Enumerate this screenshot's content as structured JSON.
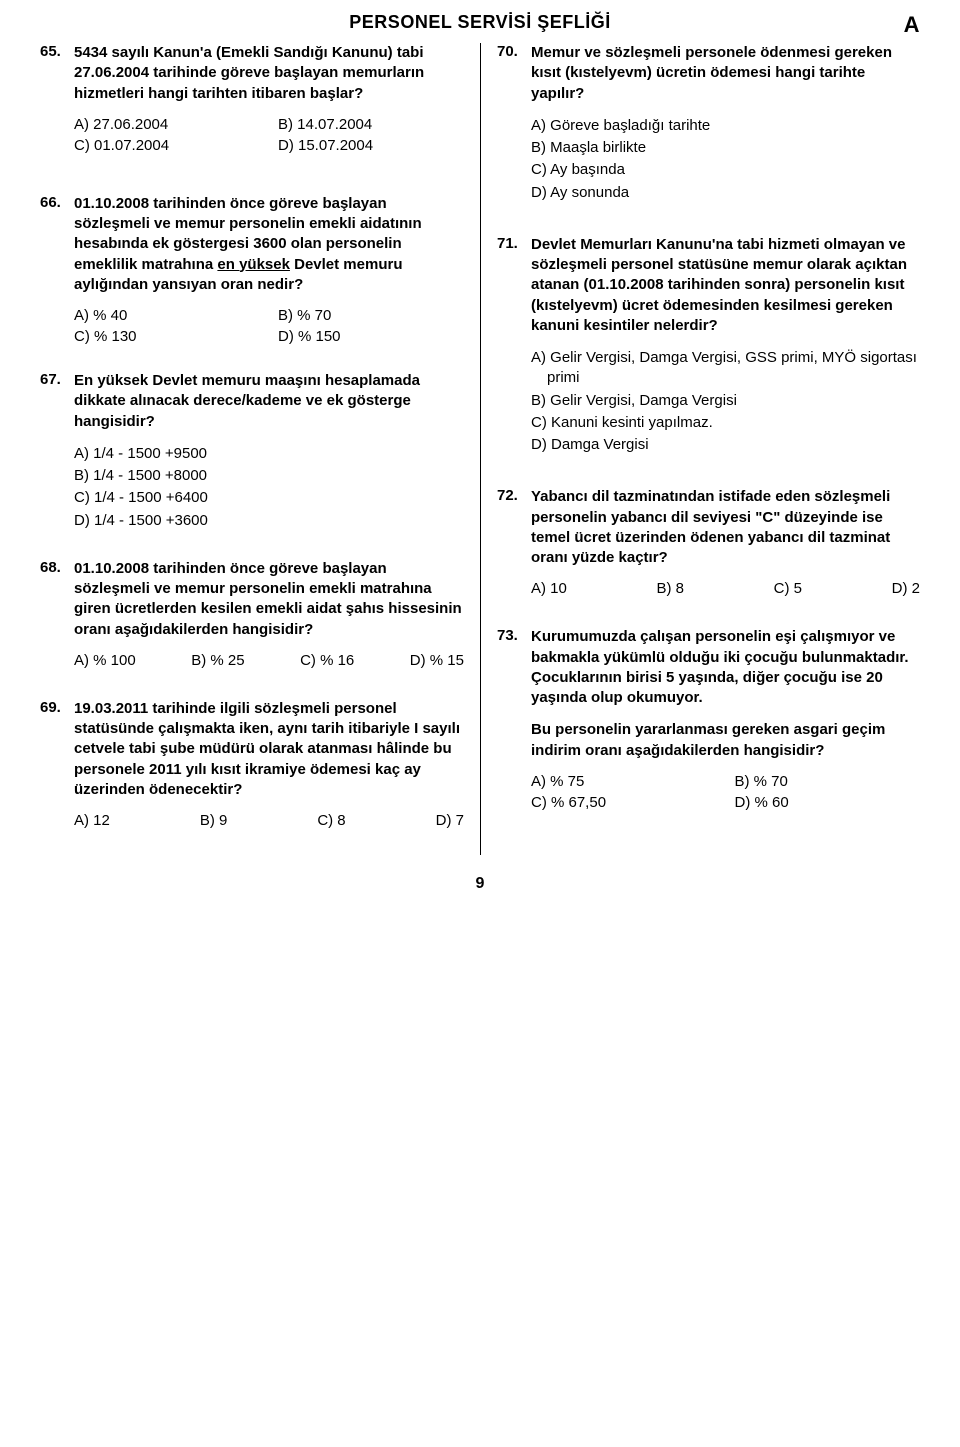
{
  "header": {
    "title": "PERSONEL SERVİSİ ŞEFLİĞİ",
    "letter": "A"
  },
  "page_number": "9",
  "left": [
    {
      "num": "65.",
      "stem": "5434 sayılı Kanun'a (Emekli Sandığı Kanunu) tabi 27.06.2004 tarihinde göreve başlayan memurların hizmetleri hangi tarihten itibaren başlar?",
      "opts_layout": "2col",
      "opts": [
        "A) 27.06.2004",
        "B) 14.07.2004",
        "C) 01.07.2004",
        "D) 15.07.2004"
      ]
    },
    {
      "num": "66.",
      "stem_html": "01.10.2008 tarihinden önce göreve başlayan sözleşmeli ve memur personelin emekli aidatının hesabında ek göstergesi 3600 olan personelin emeklilik matrahına <span class='u'>en yüksek</span> Devlet memuru aylığından yansıyan oran nedir?",
      "opts_layout": "2col",
      "opts": [
        "A) % 40",
        "B) % 70",
        "C) % 130",
        "D) % 150"
      ]
    },
    {
      "num": "67.",
      "stem": "En yüksek Devlet memuru maaşını hesaplamada dikkate alınacak derece/kademe ve ek gösterge hangisidir?",
      "opts_layout": "list",
      "opts": [
        "A) 1/4 - 1500 +9500",
        "B) 1/4 - 1500 +8000",
        "C) 1/4 - 1500 +6400",
        "D) 1/4 - 1500 +3600"
      ]
    },
    {
      "num": "68.",
      "stem": "01.10.2008 tarihinden önce göreve başlayan sözleşmeli ve memur personelin emekli matrahına giren ücretlerden kesilen emekli aidat şahıs hissesinin oranı aşağıdakilerden hangisidir?",
      "opts_layout": "4col",
      "opts": [
        "A) % 100",
        "B) % 25",
        "C) % 16",
        "D) % 15"
      ]
    },
    {
      "num": "69.",
      "stem": "19.03.2011 tarihinde ilgili sözleşmeli personel statüsünde çalışmakta iken, aynı tarih itibariyle I sayılı cetvele tabi şube müdürü olarak atanması hâlinde bu personele 2011 yılı kısıt ikramiye ödemesi kaç ay üzerinden ödenecektir?",
      "opts_layout": "4col",
      "opts": [
        "A) 12",
        "B) 9",
        "C) 8",
        "D) 7"
      ]
    }
  ],
  "right": [
    {
      "num": "70.",
      "stem": "Memur ve sözleşmeli personele ödenmesi gereken kısıt (kıstelyevm) ücretin ödemesi hangi tarihte yapılır?",
      "opts_layout": "list",
      "opts": [
        "A) Göreve başladığı tarihte",
        "B) Maaşla birlikte",
        "C) Ay başında",
        "D) Ay sonunda"
      ]
    },
    {
      "num": "71.",
      "stem": "Devlet Memurları Kanunu'na tabi hizmeti olmayan ve sözleşmeli personel statüsüne memur olarak açıktan atanan (01.10.2008 tarihinden sonra) personelin kısıt (kıstelyevm) ücret ödemesinden kesilmesi gereken kanuni kesintiler nelerdir?",
      "opts_layout": "list-indent",
      "opts": [
        "A) Gelir Vergisi, Damga Vergisi, GSS primi, MYÖ sigortası primi",
        "B) Gelir Vergisi, Damga Vergisi",
        "C) Kanuni kesinti yapılmaz.",
        "D) Damga Vergisi"
      ]
    },
    {
      "num": "72.",
      "stem": "Yabancı dil tazminatından istifade eden sözleşmeli personelin yabancı dil seviyesi \"C\" düzeyinde ise temel ücret üzerinden ödenen yabancı dil tazminat oranı yüzde kaçtır?",
      "opts_layout": "4col",
      "opts": [
        "A) 10",
        "B) 8",
        "C) 5",
        "D) 2"
      ]
    },
    {
      "num": "73.",
      "stem": "Kurumumuzda çalışan personelin eşi çalışmıyor ve bakmakla yükümlü olduğu iki çocuğu bulunmaktadır. Çocuklarının birisi 5 yaşında, diğer çocuğu ise 20 yaşında olup okumuyor.",
      "stem2": "Bu personelin yararlanması gereken asgari geçim indirim oranı aşağıdakilerden hangisidir?",
      "opts_layout": "2col",
      "opts": [
        "A) % 75",
        "B) % 70",
        "C) % 67,50",
        "D) % 60"
      ]
    }
  ]
}
